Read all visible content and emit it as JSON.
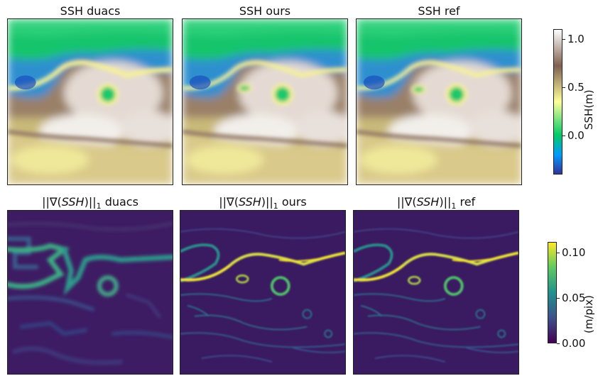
{
  "chart_data": [
    {
      "type": "heatmap",
      "row": "ssh",
      "panels": [
        {
          "title": "SSH duacs"
        },
        {
          "title": "SSH ours"
        },
        {
          "title": "SSH ref"
        }
      ],
      "colorbar": {
        "label": "SSH(m)",
        "ticks": [
          "0.0",
          "0.5",
          "1.0"
        ],
        "tick_values": [
          0.0,
          0.5,
          1.0
        ],
        "range": [
          -0.4,
          1.1
        ],
        "colormap": "terrain",
        "colors": [
          "#333399",
          "#0099ff",
          "#00cc66",
          "#ffff99",
          "#806050",
          "#ffffff"
        ]
      }
    },
    {
      "type": "heatmap",
      "row": "gradient",
      "panels": [
        {
          "title_prefix": "||∇(",
          "title_var": "SSH",
          "title_suffix": ")||",
          "title_sub": "1",
          "title_name": " duacs"
        },
        {
          "title_prefix": "||∇(",
          "title_var": "SSH",
          "title_suffix": ")||",
          "title_sub": "1",
          "title_name": " ours"
        },
        {
          "title_prefix": "||∇(",
          "title_var": "SSH",
          "title_suffix": ")||",
          "title_sub": "1",
          "title_name": " ref"
        }
      ],
      "colorbar": {
        "label": "(m/pix)",
        "ticks": [
          "0.00",
          "0.05",
          "0.10"
        ],
        "tick_values": [
          0.0,
          0.05,
          0.1
        ],
        "range": [
          0.0,
          0.112
        ],
        "colormap": "viridis",
        "colors": [
          "#440154",
          "#3b528b",
          "#21918c",
          "#5ec962",
          "#fde725"
        ]
      }
    }
  ]
}
